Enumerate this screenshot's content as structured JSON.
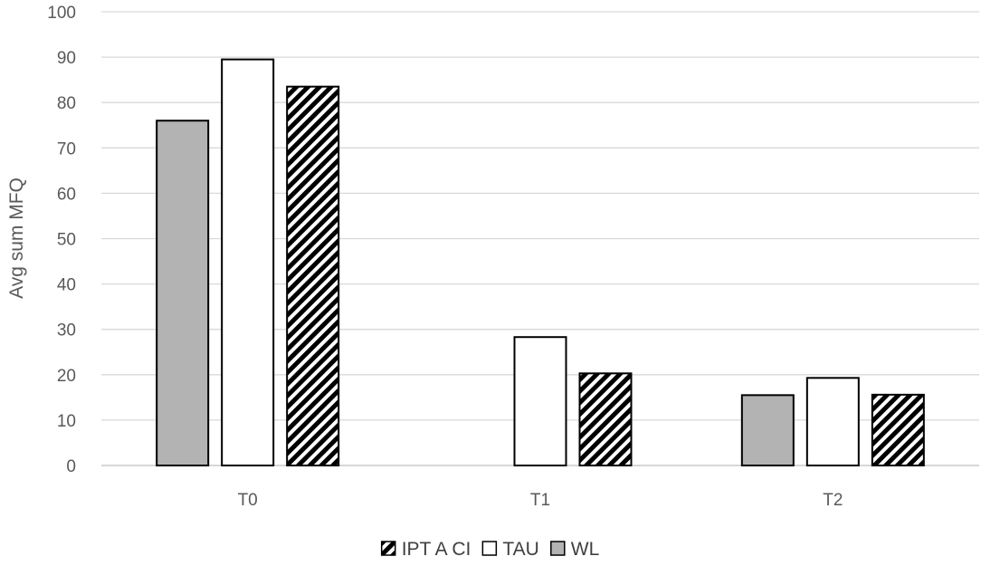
{
  "chart_data": {
    "type": "bar",
    "categories": [
      "T0",
      "T1",
      "T2"
    ],
    "series": [
      {
        "name": "WL",
        "values": [
          76,
          null,
          15.5
        ],
        "color": "#b3b3b3",
        "pattern": "solid"
      },
      {
        "name": "TAU",
        "values": [
          89.5,
          28.3,
          19.3
        ],
        "color": "#ffffff",
        "pattern": "solid"
      },
      {
        "name": "IPT A CI",
        "values": [
          83.5,
          20.3,
          15.6
        ],
        "color": "#000000",
        "pattern": "diagonal-hatch"
      }
    ],
    "legend_order": [
      "IPT A CI",
      "TAU",
      "WL"
    ],
    "title": "",
    "xlabel": "",
    "ylabel": "Avg sum MFQ",
    "ylim": [
      0,
      100
    ],
    "yticks": [
      0,
      10,
      20,
      30,
      40,
      50,
      60,
      70,
      80,
      90,
      100
    ],
    "grid": true,
    "legend_position": "bottom"
  }
}
